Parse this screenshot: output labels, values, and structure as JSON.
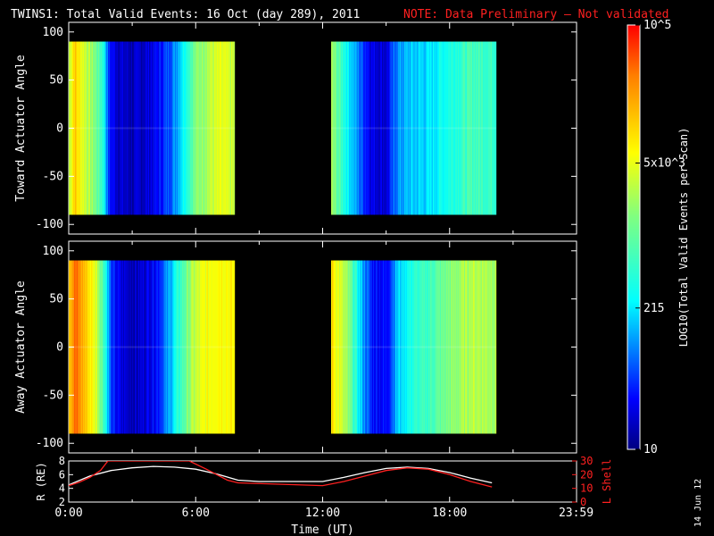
{
  "header": {
    "title": "TWINS1: Total Valid Events: 16 Oct (day 289), 2011",
    "note": "NOTE: Data Preliminary – Not validated"
  },
  "date_stamp": "14 Jun 12",
  "colors": {
    "note": "#ff2020",
    "r_line": "#ffffff",
    "lshell_line": "#ff2020"
  },
  "chart_data": [
    {
      "type": "heatmap",
      "ylabel": "Toward Actuator Angle",
      "ylim": [
        -110,
        110
      ],
      "yticks": [
        "100",
        "50",
        "0",
        "-50",
        "-100"
      ],
      "xlim": [
        0,
        24
      ],
      "data_extent": {
        "angle": [
          -90,
          90
        ]
      },
      "intervals": [
        {
          "start_h": 0.0,
          "end_h": 7.85,
          "profile": [
            [
              0.0,
              0.62
            ],
            [
              0.25,
              0.78
            ],
            [
              0.6,
              0.68
            ],
            [
              1.2,
              0.55
            ],
            [
              1.6,
              0.42
            ],
            [
              1.9,
              0.14
            ],
            [
              2.3,
              0.08
            ],
            [
              3.0,
              0.05
            ],
            [
              3.5,
              0.07
            ],
            [
              4.0,
              0.1
            ],
            [
              4.5,
              0.16
            ],
            [
              5.0,
              0.25
            ],
            [
              5.5,
              0.4
            ],
            [
              6.0,
              0.55
            ],
            [
              6.6,
              0.62
            ],
            [
              7.2,
              0.66
            ],
            [
              7.85,
              0.62
            ]
          ]
        },
        {
          "start_h": 12.4,
          "end_h": 20.2,
          "profile": [
            [
              12.4,
              0.58
            ],
            [
              13.2,
              0.35
            ],
            [
              13.8,
              0.2
            ],
            [
              14.3,
              0.1
            ],
            [
              15.0,
              0.08
            ],
            [
              15.5,
              0.25
            ],
            [
              16.2,
              0.3
            ],
            [
              17.0,
              0.32
            ],
            [
              18.0,
              0.4
            ],
            [
              19.0,
              0.46
            ],
            [
              20.2,
              0.44
            ]
          ]
        }
      ]
    },
    {
      "type": "heatmap",
      "ylabel": "Away Actuator Angle",
      "ylim": [
        -110,
        110
      ],
      "yticks": [
        "100",
        "50",
        "0",
        "-50",
        "-100"
      ],
      "xlim": [
        0,
        24
      ],
      "data_extent": {
        "angle": [
          -90,
          90
        ]
      },
      "intervals": [
        {
          "start_h": 0.0,
          "end_h": 7.85,
          "profile": [
            [
              0.0,
              0.8
            ],
            [
              0.3,
              0.9
            ],
            [
              0.7,
              0.8
            ],
            [
              1.3,
              0.65
            ],
            [
              1.7,
              0.42
            ],
            [
              2.0,
              0.15
            ],
            [
              2.5,
              0.08
            ],
            [
              3.2,
              0.06
            ],
            [
              3.7,
              0.1
            ],
            [
              4.2,
              0.15
            ],
            [
              4.7,
              0.26
            ],
            [
              5.2,
              0.42
            ],
            [
              5.8,
              0.6
            ],
            [
              6.4,
              0.68
            ],
            [
              7.0,
              0.72
            ],
            [
              7.85,
              0.7
            ]
          ]
        },
        {
          "start_h": 12.4,
          "end_h": 20.2,
          "profile": [
            [
              12.4,
              0.75
            ],
            [
              13.2,
              0.55
            ],
            [
              13.8,
              0.3
            ],
            [
              14.3,
              0.14
            ],
            [
              15.0,
              0.12
            ],
            [
              15.5,
              0.3
            ],
            [
              16.2,
              0.4
            ],
            [
              17.0,
              0.45
            ],
            [
              18.0,
              0.55
            ],
            [
              19.0,
              0.62
            ],
            [
              20.2,
              0.6
            ]
          ]
        }
      ]
    },
    {
      "type": "colorbar",
      "label": "LOG10(Total Valid Events per Scan)",
      "ticks": [
        {
          "label": "10",
          "value": 10
        },
        {
          "label": "215",
          "value": 215
        },
        {
          "label": "5x10^3",
          "value": 5000
        },
        {
          "label": "10^5",
          "value": 100000
        }
      ],
      "range": [
        10,
        100000
      ],
      "scale": "log"
    },
    {
      "type": "line",
      "xlabel": "Time (UT)",
      "xticks": [
        "0:00",
        "6:00",
        "12:00",
        "18:00",
        "23:59"
      ],
      "xlim": [
        0,
        24
      ],
      "series": [
        {
          "name": "R (RE)",
          "axis": "left",
          "ylim": [
            2,
            8
          ],
          "yticks": [
            "8",
            "6",
            "4",
            "2"
          ],
          "x": [
            0.0,
            1.0,
            2.0,
            3.0,
            4.0,
            5.0,
            6.0,
            7.0,
            8.0,
            9.0,
            10.0,
            11.0,
            12.0,
            13.0,
            14.0,
            15.0,
            16.0,
            17.0,
            18.0,
            19.0,
            20.0
          ],
          "y": [
            4.5,
            5.8,
            6.6,
            7.0,
            7.2,
            7.1,
            6.8,
            6.1,
            5.2,
            5.0,
            5.0,
            5.0,
            5.0,
            5.6,
            6.3,
            6.9,
            7.1,
            6.9,
            6.3,
            5.5,
            4.8
          ]
        },
        {
          "name": "L Shell",
          "axis": "right",
          "ylim": [
            0,
            30
          ],
          "yticks": [
            "30",
            "20",
            "10",
            "0"
          ],
          "x": [
            0.0,
            0.5,
            1.0,
            1.5,
            1.85,
            5.7,
            6.5,
            7.5,
            8.0,
            12.0,
            13.0,
            14.0,
            15.0,
            16.0,
            17.0,
            18.0,
            19.0,
            20.0
          ],
          "y": [
            12.0,
            14.5,
            18.0,
            23.0,
            30.0,
            30.0,
            24.0,
            16.0,
            14.0,
            12.0,
            15.0,
            19.0,
            23.0,
            25.0,
            24.0,
            20.0,
            15.0,
            11.0
          ]
        }
      ]
    }
  ]
}
